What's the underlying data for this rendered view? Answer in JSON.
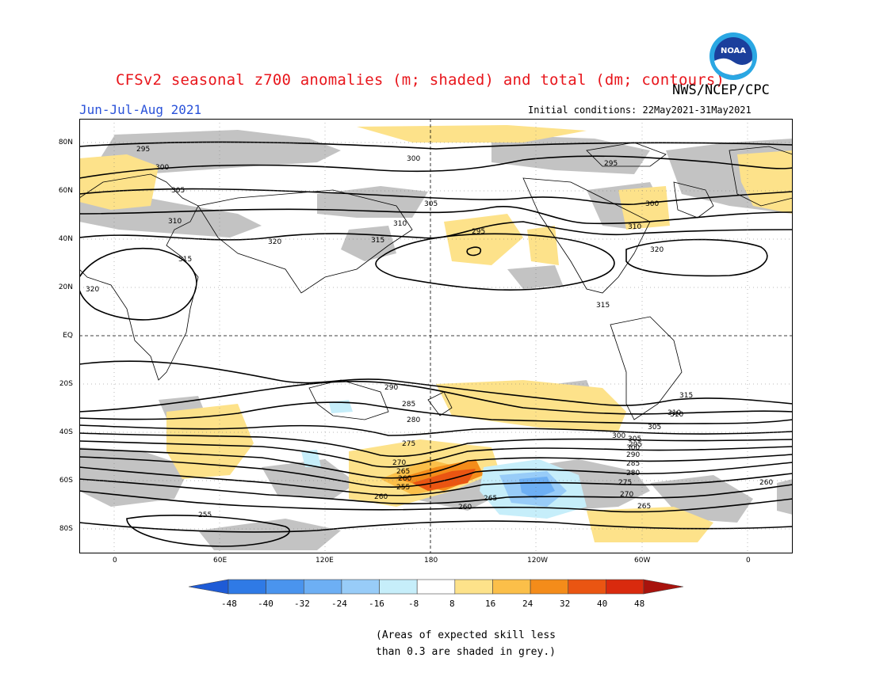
{
  "header": {
    "title": "CFSv2 seasonal z700 anomalies (m; shaded) and total (dm; contours)",
    "agency": "NWS/NCEP/CPC",
    "season": "Jun-Jul-Aug 2021",
    "initial_conditions": "Initial conditions: 22May2021-31May2021"
  },
  "logo": {
    "text": "NOAA",
    "icon": "noaa-logo"
  },
  "map": {
    "lat_labels": [
      "80N",
      "60N",
      "40N",
      "20N",
      "EQ",
      "20S",
      "40S",
      "60S",
      "80S"
    ],
    "lon_labels": [
      "0",
      "60E",
      "120E",
      "180",
      "120W",
      "60W",
      "0"
    ],
    "contour_labels": [
      "295",
      "300",
      "305",
      "310",
      "315",
      "320",
      "320",
      "315",
      "310",
      "305",
      "300",
      "295",
      "290",
      "285",
      "280",
      "275",
      "270",
      "265",
      "260",
      "255",
      "260",
      "265",
      "260",
      "300",
      "305",
      "310",
      "315",
      "320",
      "315",
      "310",
      "305",
      "300",
      "295",
      "290",
      "285",
      "280",
      "275",
      "270",
      "265",
      "260",
      "255",
      "295",
      "300",
      "310"
    ],
    "colors": {
      "skill_grey": "#c0c0c0",
      "land_outline": "#000000",
      "contour": "#000000"
    }
  },
  "colorbar": {
    "labels": [
      "-48",
      "-40",
      "-32",
      "-24",
      "-16",
      "-8",
      "8",
      "16",
      "24",
      "32",
      "40",
      "48"
    ],
    "colors": [
      "#1e5bd6",
      "#2f7ae6",
      "#4a94ee",
      "#6daff4",
      "#98ccf8",
      "#c6eefa",
      "#ffffff",
      "#fde28a",
      "#fbbf49",
      "#f48c1a",
      "#ea5512",
      "#d92a0e",
      "#a8130d"
    ]
  },
  "footnote": {
    "line1": "(Areas of expected skill less",
    "line2": "than 0.3 are shaded in grey.)"
  }
}
